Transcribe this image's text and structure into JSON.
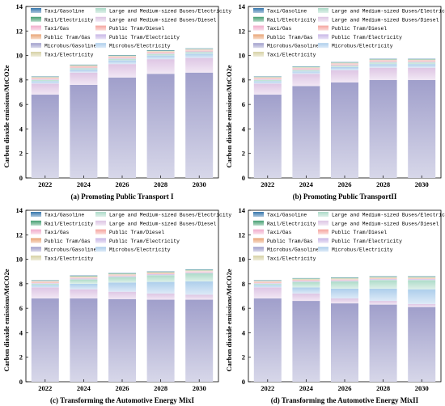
{
  "series_names": [
    "Taxi/Gasoline",
    "Rail/Electricity",
    "Taxi/Gas",
    "Public Tram/Gas",
    "Microbus/Gasoline",
    "Taxi/Electricity",
    "Large and Medium-sized Buses/Electricity",
    "Large and Medium-sized Buses/Diesel",
    "Public Tram/Diesel",
    "Public Tram/Electricity",
    "Microbus/Electricity"
  ],
  "series_colors": {
    "Taxi/Gasoline": "#2a6fa8",
    "Rail/Electricity": "#3e9b6c",
    "Taxi/Gas": "#f0a9c8",
    "Public Tram/Gas": "#e8a070",
    "Microbus/Gasoline": "#9b9ac8",
    "Taxi/Electricity": "#d4cfa0",
    "Large and Medium-sized Buses/Electricity": "#a9d9c6",
    "Large and Medium-sized Buses/Diesel": "#dcc3e3",
    "Public Tram/Diesel": "#f4a09a",
    "Public Tram/Electricity": "#c6b3e6",
    "Microbus/Electricity": "#a9cbea"
  },
  "chart_data": [
    {
      "type": "bar",
      "caption": "(a) Promoting Public Transport I",
      "ylabel": "Carbon dioxide emissions/MtCO2e",
      "ylim": [
        0,
        14
      ],
      "yticks": [
        "0",
        "2",
        "4",
        "6",
        "8",
        "10",
        "12",
        "14"
      ],
      "categories": [
        "2022",
        "2024",
        "2026",
        "2028",
        "2030"
      ],
      "series": [
        {
          "name": "Microbus/Gasoline",
          "values": [
            6.8,
            7.6,
            8.2,
            8.5,
            8.6
          ]
        },
        {
          "name": "Large and Medium-sized Buses/Diesel",
          "values": [
            0.9,
            1.0,
            1.1,
            1.2,
            1.2
          ]
        },
        {
          "name": "Microbus/Electricity",
          "values": [
            0.2,
            0.25,
            0.3,
            0.3,
            0.35
          ]
        },
        {
          "name": "Large and Medium-sized Buses/Electricity",
          "values": [
            0.1,
            0.1,
            0.12,
            0.12,
            0.12
          ]
        },
        {
          "name": "Public Tram/Electricity",
          "values": [
            0.05,
            0.05,
            0.06,
            0.06,
            0.06
          ]
        },
        {
          "name": "Public Tram/Diesel",
          "values": [
            0.05,
            0.05,
            0.05,
            0.05,
            0.05
          ]
        },
        {
          "name": "Public Tram/Gas",
          "values": [
            0.03,
            0.03,
            0.03,
            0.03,
            0.03
          ]
        },
        {
          "name": "Taxi/Gas",
          "values": [
            0.05,
            0.05,
            0.05,
            0.05,
            0.05
          ]
        },
        {
          "name": "Taxi/Electricity",
          "values": [
            0.05,
            0.05,
            0.05,
            0.05,
            0.05
          ]
        },
        {
          "name": "Rail/Electricity",
          "values": [
            0.04,
            0.04,
            0.04,
            0.04,
            0.04
          ]
        },
        {
          "name": "Taxi/Gasoline",
          "values": [
            0.03,
            0.03,
            0.03,
            0.03,
            0.03
          ]
        }
      ]
    },
    {
      "type": "bar",
      "caption": "(b) Promoting Public TransportII",
      "ylabel": "Carbon dioxide emissions/MtCO2e",
      "ylim": [
        0,
        14
      ],
      "yticks": [
        "0",
        "2",
        "4",
        "6",
        "8",
        "10",
        "12",
        "14"
      ],
      "categories": [
        "2022",
        "2024",
        "2026",
        "2028",
        "2030"
      ],
      "series": [
        {
          "name": "Microbus/Gasoline",
          "values": [
            6.8,
            7.5,
            7.8,
            8.0,
            8.0
          ]
        },
        {
          "name": "Large and Medium-sized Buses/Diesel",
          "values": [
            0.9,
            1.0,
            1.0,
            1.0,
            1.0
          ]
        },
        {
          "name": "Microbus/Electricity",
          "values": [
            0.2,
            0.2,
            0.25,
            0.3,
            0.3
          ]
        },
        {
          "name": "Large and Medium-sized Buses/Electricity",
          "values": [
            0.1,
            0.1,
            0.1,
            0.12,
            0.12
          ]
        },
        {
          "name": "Public Tram/Electricity",
          "values": [
            0.05,
            0.05,
            0.06,
            0.06,
            0.06
          ]
        },
        {
          "name": "Public Tram/Diesel",
          "values": [
            0.05,
            0.05,
            0.05,
            0.05,
            0.05
          ]
        },
        {
          "name": "Public Tram/Gas",
          "values": [
            0.03,
            0.03,
            0.03,
            0.03,
            0.03
          ]
        },
        {
          "name": "Taxi/Gas",
          "values": [
            0.05,
            0.05,
            0.05,
            0.05,
            0.05
          ]
        },
        {
          "name": "Taxi/Electricity",
          "values": [
            0.05,
            0.05,
            0.05,
            0.05,
            0.05
          ]
        },
        {
          "name": "Rail/Electricity",
          "values": [
            0.04,
            0.04,
            0.04,
            0.04,
            0.04
          ]
        },
        {
          "name": "Taxi/Gasoline",
          "values": [
            0.03,
            0.03,
            0.03,
            0.03,
            0.03
          ]
        }
      ]
    },
    {
      "type": "bar",
      "caption": "(c) Transforming the Automotive Energy MixI",
      "ylabel": "Carbon dioxide emissions/MtCO2e",
      "ylim": [
        0,
        14
      ],
      "yticks": [
        "0",
        "2",
        "4",
        "6",
        "8",
        "10",
        "12",
        "14"
      ],
      "categories": [
        "2022",
        "2024",
        "2026",
        "2028",
        "2030"
      ],
      "series": [
        {
          "name": "Microbus/Gasoline",
          "values": [
            6.8,
            6.8,
            6.75,
            6.7,
            6.7
          ]
        },
        {
          "name": "Large and Medium-sized Buses/Diesel",
          "values": [
            0.9,
            0.75,
            0.6,
            0.5,
            0.4
          ]
        },
        {
          "name": "Microbus/Electricity",
          "values": [
            0.2,
            0.45,
            0.75,
            0.95,
            1.1
          ]
        },
        {
          "name": "Large and Medium-sized Buses/Electricity",
          "values": [
            0.1,
            0.35,
            0.45,
            0.55,
            0.65
          ]
        },
        {
          "name": "Public Tram/Electricity",
          "values": [
            0.05,
            0.08,
            0.08,
            0.08,
            0.08
          ]
        },
        {
          "name": "Public Tram/Diesel",
          "values": [
            0.05,
            0.04,
            0.04,
            0.03,
            0.03
          ]
        },
        {
          "name": "Public Tram/Gas",
          "values": [
            0.03,
            0.03,
            0.03,
            0.03,
            0.03
          ]
        },
        {
          "name": "Taxi/Gas",
          "values": [
            0.05,
            0.04,
            0.04,
            0.04,
            0.04
          ]
        },
        {
          "name": "Taxi/Electricity",
          "values": [
            0.05,
            0.06,
            0.06,
            0.06,
            0.06
          ]
        },
        {
          "name": "Rail/Electricity",
          "values": [
            0.04,
            0.05,
            0.05,
            0.05,
            0.05
          ]
        },
        {
          "name": "Taxi/Gasoline",
          "values": [
            0.03,
            0.03,
            0.03,
            0.03,
            0.03
          ]
        }
      ]
    },
    {
      "type": "bar",
      "caption": "(d) Transforming the Automotive Energy MixII",
      "ylabel": "Carbon dioxide emissions/MtCO2e",
      "ylim": [
        0,
        14
      ],
      "yticks": [
        "0",
        "2",
        "4",
        "6",
        "8",
        "10",
        "12",
        "14"
      ],
      "categories": [
        "2022",
        "2024",
        "2026",
        "2028",
        "2030"
      ],
      "series": [
        {
          "name": "Microbus/Gasoline",
          "values": [
            6.8,
            6.6,
            6.4,
            6.3,
            6.1
          ]
        },
        {
          "name": "Large and Medium-sized Buses/Diesel",
          "values": [
            0.9,
            0.6,
            0.4,
            0.3,
            0.25
          ]
        },
        {
          "name": "Microbus/Electricity",
          "values": [
            0.2,
            0.5,
            0.8,
            1.0,
            1.2
          ]
        },
        {
          "name": "Large and Medium-sized Buses/Electricity",
          "values": [
            0.1,
            0.45,
            0.6,
            0.7,
            0.75
          ]
        },
        {
          "name": "Public Tram/Electricity",
          "values": [
            0.05,
            0.08,
            0.08,
            0.08,
            0.08
          ]
        },
        {
          "name": "Public Tram/Diesel",
          "values": [
            0.05,
            0.03,
            0.03,
            0.03,
            0.03
          ]
        },
        {
          "name": "Public Tram/Gas",
          "values": [
            0.03,
            0.03,
            0.03,
            0.03,
            0.03
          ]
        },
        {
          "name": "Taxi/Gas",
          "values": [
            0.05,
            0.03,
            0.03,
            0.03,
            0.03
          ]
        },
        {
          "name": "Taxi/Electricity",
          "values": [
            0.05,
            0.07,
            0.07,
            0.07,
            0.07
          ]
        },
        {
          "name": "Rail/Electricity",
          "values": [
            0.04,
            0.05,
            0.05,
            0.05,
            0.05
          ]
        },
        {
          "name": "Taxi/Gasoline",
          "values": [
            0.03,
            0.02,
            0.02,
            0.02,
            0.02
          ]
        }
      ]
    }
  ]
}
